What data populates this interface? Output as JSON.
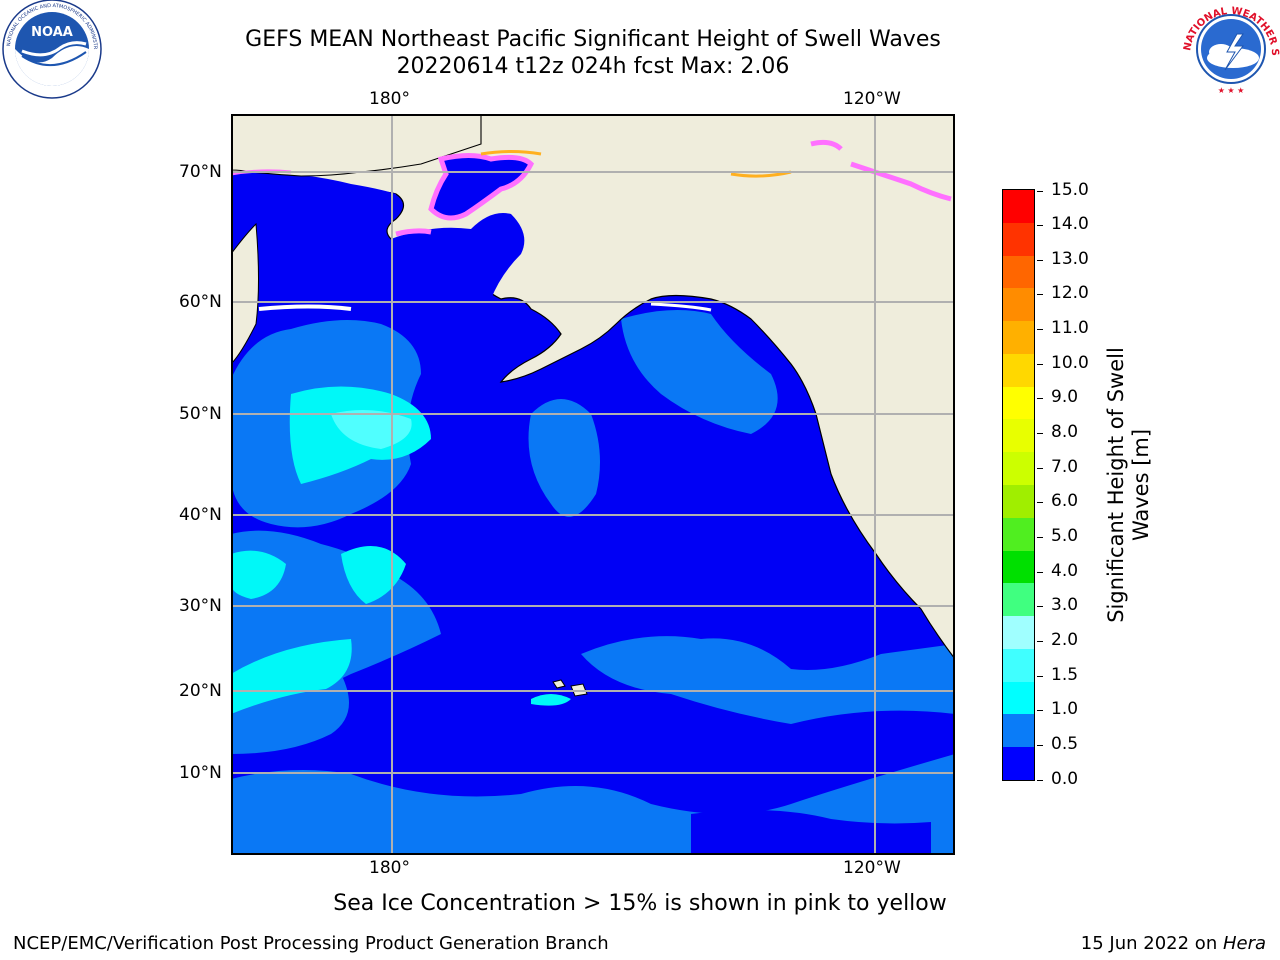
{
  "title": {
    "line1": "GEFS MEAN Northeast Pacific Significant Height of Swell Waves",
    "line2": "20220614 t12z 024h fcst   Max: 2.06"
  },
  "logos": {
    "noaa": {
      "text": "NOAA",
      "ring_text": "NATIONAL OCEANIC AND ATMOSPHERIC ADMINISTRATION · U.S. DEPARTMENT OF COMMERCE",
      "icon": "noaa-logo-icon"
    },
    "nws": {
      "ring_text": "NATIONAL WEATHER SERVICE",
      "icon": "nws-logo-icon"
    }
  },
  "map": {
    "lon_labels_top": [
      "180°",
      "120°W"
    ],
    "lon_labels_bottom": [
      "180°",
      "120°W"
    ],
    "lat_labels": [
      "70°N",
      "60°N",
      "50°N",
      "40°N",
      "30°N",
      "20°N",
      "10°N"
    ],
    "colors": {
      "land": "#efeddc",
      "ocean_0": "#0000f5",
      "ocean_05": "#0a78f5",
      "ocean_1": "#00f8f8",
      "ocean_15": "#40ffff",
      "ice_pink": "#ff70ff",
      "ice_orange": "#ffb020",
      "grid": "#b0b0b0"
    }
  },
  "colorbar": {
    "label": "Significant Height of Swell Waves [m]",
    "label_line1": "Significant Height of Swell",
    "label_line2": "Waves [m]",
    "ticks": [
      "15.0",
      "14.0",
      "13.0",
      "12.0",
      "11.0",
      "10.0",
      "9.0",
      "8.0",
      "7.0",
      "6.0",
      "5.0",
      "4.0",
      "3.0",
      "2.0",
      "1.5",
      "1.0",
      "0.5",
      "0.0"
    ],
    "colors": [
      "#0000ff",
      "#0a7cf8",
      "#00ffff",
      "#40ffff",
      "#a0ffff",
      "#40ff80",
      "#00e000",
      "#50ee20",
      "#a0ee00",
      "#ccff00",
      "#e8ff00",
      "#ffff00",
      "#ffd800",
      "#ffb000",
      "#ff8c00",
      "#ff6600",
      "#ff3300",
      "#ff0000"
    ]
  },
  "caption": "Sea Ice Concentration > 15% is shown in pink to yellow",
  "footer": {
    "left": "NCEP/EMC/Verification Post Processing Product Generation Branch",
    "right_prefix": "15 Jun 2022 on ",
    "right_host": "Hera"
  }
}
